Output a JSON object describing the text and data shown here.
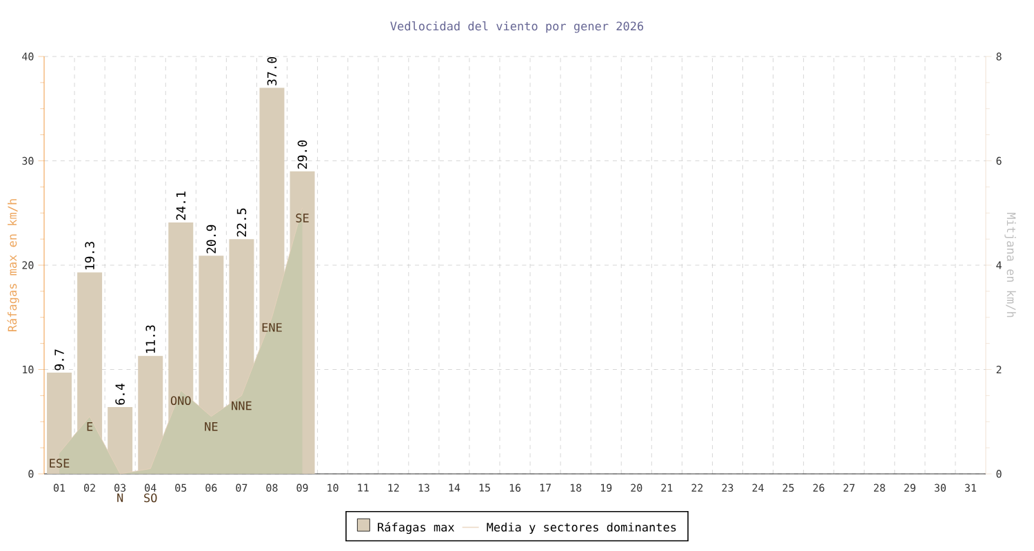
{
  "chart_data": {
    "type": "bar",
    "title": "Vedlocidad del viento por gener 2026",
    "ylabel": "Ráfagas max en km/h",
    "y2label": "Mitjana en km/h",
    "categories": [
      "01",
      "02",
      "03",
      "04",
      "05",
      "06",
      "07",
      "08",
      "09",
      "10",
      "11",
      "12",
      "13",
      "14",
      "15",
      "16",
      "17",
      "18",
      "19",
      "20",
      "21",
      "22",
      "23",
      "24",
      "25",
      "26",
      "27",
      "28",
      "29",
      "30",
      "31"
    ],
    "series": [
      {
        "name": "Ráfagas max",
        "color": "#d9cdb8",
        "values": [
          9.7,
          19.3,
          6.4,
          11.3,
          24.1,
          20.9,
          22.5,
          37.0,
          29.0,
          null,
          null,
          null,
          null,
          null,
          null,
          null,
          null,
          null,
          null,
          null,
          null,
          null,
          null,
          null,
          null,
          null,
          null,
          null,
          null,
          null,
          null
        ],
        "value_labels": [
          "9.7",
          "19.3",
          "6.4",
          "11.3",
          "24.1",
          "20.9",
          "22.5",
          "37.0",
          "29.0",
          null,
          null,
          null,
          null,
          null,
          null,
          null,
          null,
          null,
          null,
          null,
          null,
          null,
          null,
          null,
          null,
          null,
          null,
          null,
          null,
          null,
          null
        ]
      },
      {
        "name": "Media y sectores dominantes",
        "type": "area",
        "axis": "y2",
        "color": "#c9c9ad",
        "values": [
          0.4,
          1.1,
          0.0,
          0.1,
          1.6,
          1.1,
          1.5,
          3.0,
          5.1,
          null,
          null,
          null,
          null,
          null,
          null,
          null,
          null,
          null,
          null,
          null,
          null,
          null,
          null,
          null,
          null,
          null,
          null,
          null,
          null,
          null,
          null
        ]
      }
    ],
    "annotations": [
      "ESE",
      "E",
      "N",
      "SO",
      "ONO",
      "NE",
      "NNE",
      "ENE",
      "SE"
    ],
    "ylim": [
      0,
      40
    ],
    "yticks": [
      0,
      10,
      20,
      30,
      40
    ],
    "y2lim": [
      0,
      8
    ],
    "y2ticks": [
      0,
      2,
      4,
      6,
      8
    ],
    "grid": true,
    "legend": "bottom"
  }
}
